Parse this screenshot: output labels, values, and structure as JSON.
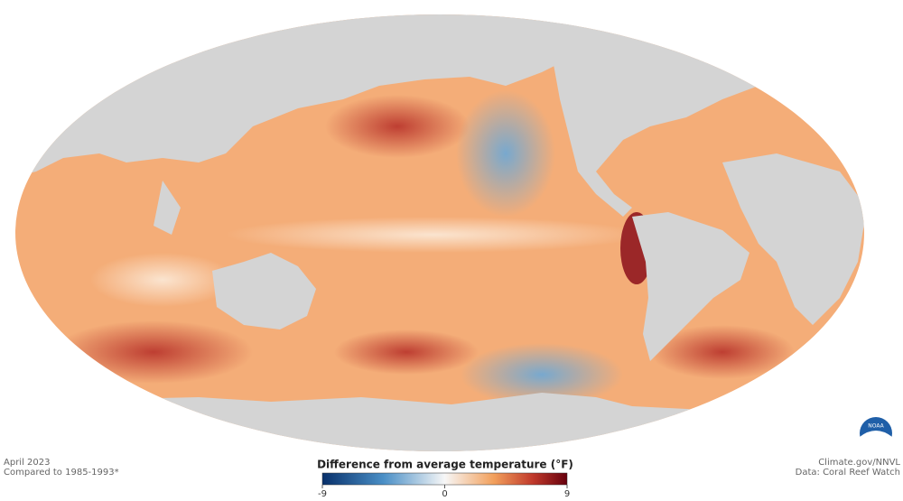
{
  "caption": {
    "date": "April 2023",
    "baseline": "Compared to 1985-1993*"
  },
  "credits": {
    "source": "Climate.gov/NNVL",
    "data": "Data: Coral Reef Watch"
  },
  "legend": {
    "title": "Difference from average temperature (°F)",
    "range": [
      -9,
      9
    ],
    "ticks": [
      -9,
      0,
      9
    ]
  },
  "logo": {
    "text": "NOAA"
  }
}
